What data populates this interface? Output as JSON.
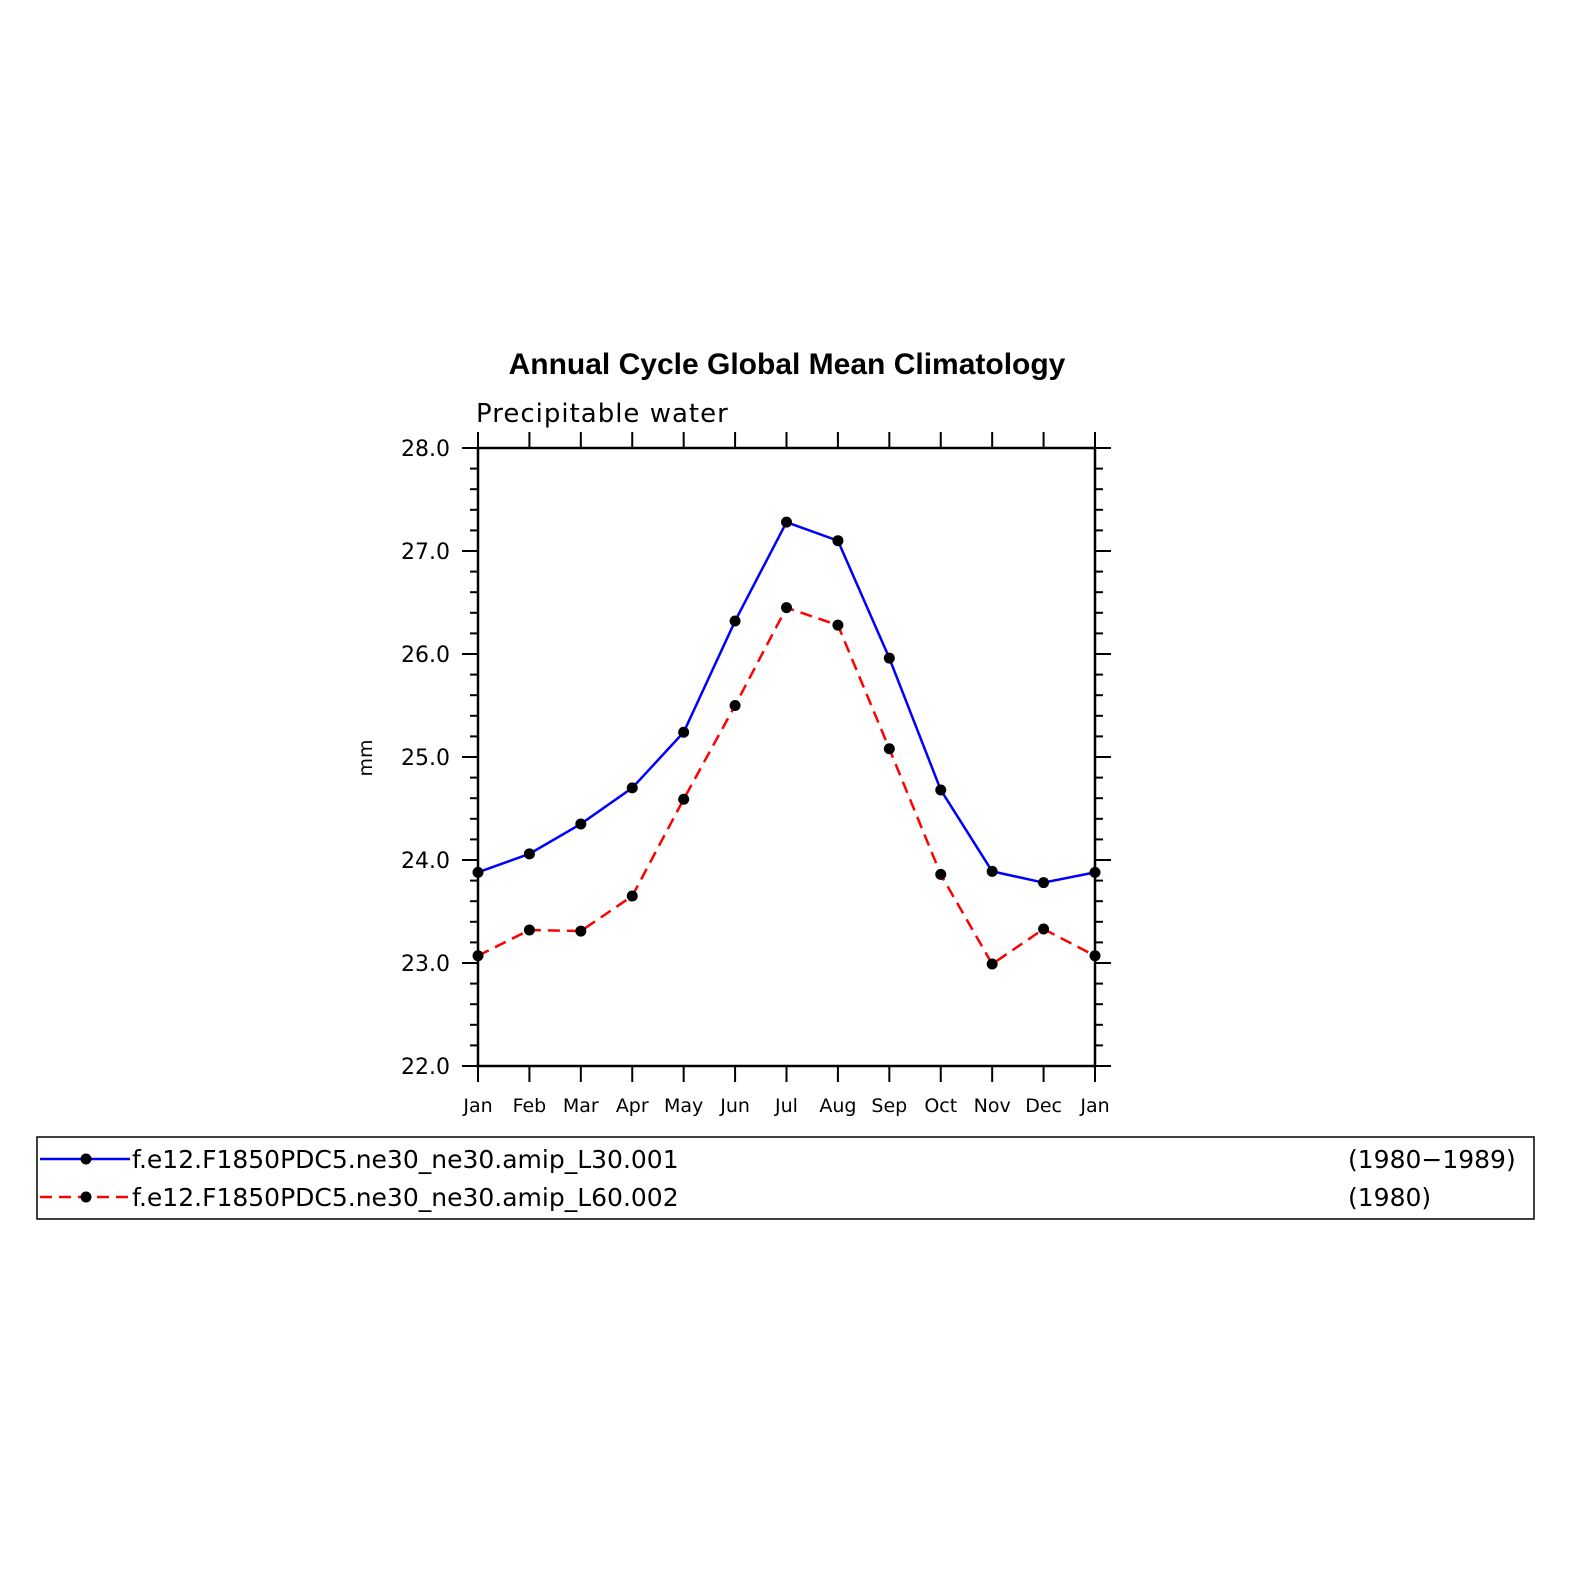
{
  "chart_data": {
    "type": "line",
    "title": "Annual Cycle Global Mean Climatology",
    "subtitle": "Precipitable water",
    "xlabel": "",
    "ylabel": "mm",
    "categories": [
      "Jan",
      "Feb",
      "Mar",
      "Apr",
      "May",
      "Jun",
      "Jul",
      "Aug",
      "Sep",
      "Oct",
      "Nov",
      "Dec",
      "Jan"
    ],
    "ylim": [
      22.0,
      28.0
    ],
    "yticks": [
      "22.0",
      "23.0",
      "24.0",
      "25.0",
      "26.0",
      "27.0",
      "28.0"
    ],
    "series": [
      {
        "name": "f.e12.F1850PDC5.ne30_ne30.amip_L30.001",
        "years": "(1980−1989)",
        "color": "#0000ff",
        "dash": "solid",
        "values": [
          23.88,
          24.06,
          24.35,
          24.7,
          25.24,
          26.32,
          27.28,
          27.1,
          25.96,
          24.68,
          23.89,
          23.78,
          23.88
        ]
      },
      {
        "name": "f.e12.F1850PDC5.ne30_ne30.amip_L60.002",
        "years": "(1980)",
        "color": "#ff0000",
        "dash": "dashed",
        "values": [
          23.07,
          23.32,
          23.31,
          23.65,
          24.59,
          25.5,
          26.45,
          26.28,
          25.08,
          23.86,
          22.99,
          23.33,
          23.07
        ]
      }
    ],
    "marker_color": "#000000",
    "grid": false,
    "legend_position": "bottom"
  }
}
